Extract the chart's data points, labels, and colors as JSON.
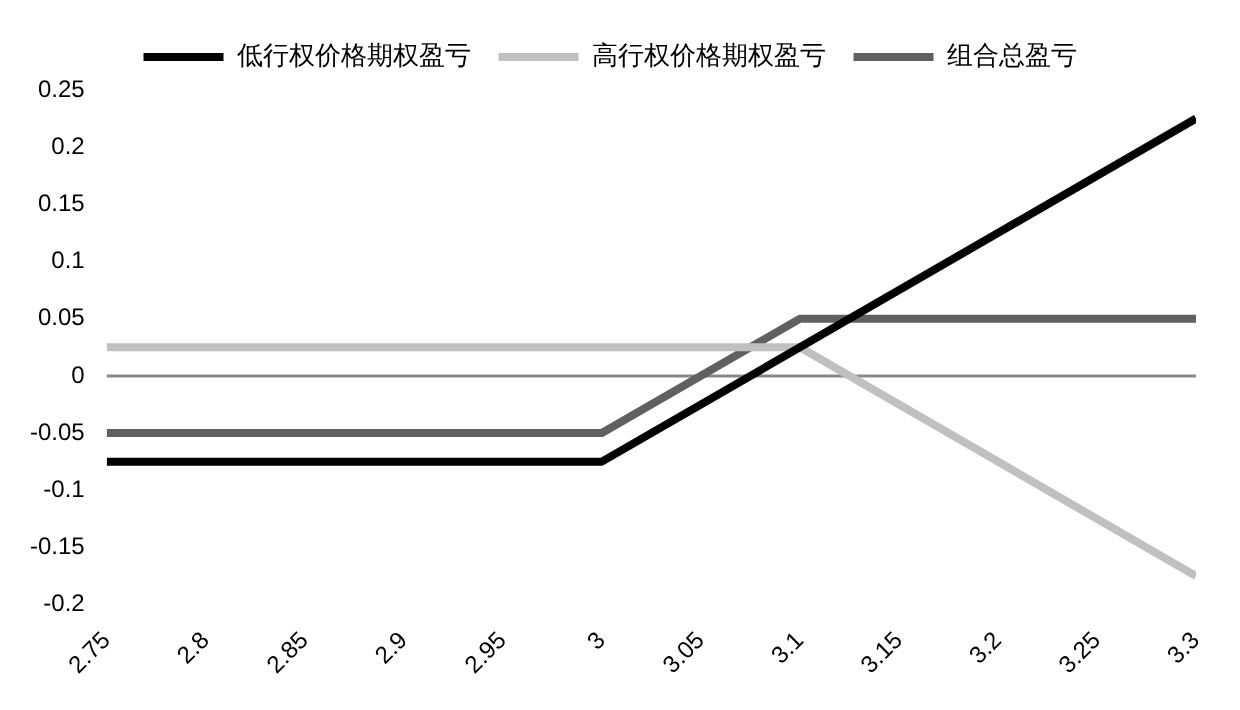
{
  "chart_data": {
    "type": "line",
    "legend": "top",
    "marker": "none",
    "grid": false,
    "xlim": [
      2.75,
      3.3
    ],
    "xticks": [
      {
        "value": 2.75,
        "label": "2.75"
      },
      {
        "value": 2.8,
        "label": "2.8"
      },
      {
        "value": 2.85,
        "label": "2.85"
      },
      {
        "value": 2.9,
        "label": "2.9"
      },
      {
        "value": 2.95,
        "label": "2.95"
      },
      {
        "value": 3,
        "label": "3"
      },
      {
        "value": 3.05,
        "label": "3.05"
      },
      {
        "value": 3.1,
        "label": "3.1"
      },
      {
        "value": 3.15,
        "label": "3.15"
      },
      {
        "value": 3.2,
        "label": "3.2"
      },
      {
        "value": 3.25,
        "label": "3.25"
      },
      {
        "value": 3.3,
        "label": "3.3"
      }
    ],
    "ref_lines": [
      {
        "axis": "y",
        "value": 0,
        "color": "#888888"
      }
    ],
    "ylim": [
      -0.2,
      0.25
    ],
    "yticks": [
      -0.2,
      -0.15,
      -0.1,
      -0.05,
      0,
      0.05,
      0.1,
      0.15,
      0.2,
      0.25
    ],
    "series": [
      {
        "name": "低行权价格期权盈亏",
        "color": "#000000",
        "x": [
          2.75,
          3,
          3.3
        ],
        "values": [
          -0.075,
          -0.075,
          0.225
        ]
      },
      {
        "name": "高行权价格期权盈亏",
        "color": "#c0c0c0",
        "x": [
          2.75,
          3.1,
          3.3
        ],
        "values": [
          0.025,
          0.025,
          -0.175
        ]
      },
      {
        "name": "组合总盈亏",
        "color": "#606060",
        "x": [
          2.75,
          3,
          3.1,
          3.3
        ],
        "values": [
          -0.05,
          -0.05,
          0.05,
          0.05
        ]
      }
    ]
  }
}
